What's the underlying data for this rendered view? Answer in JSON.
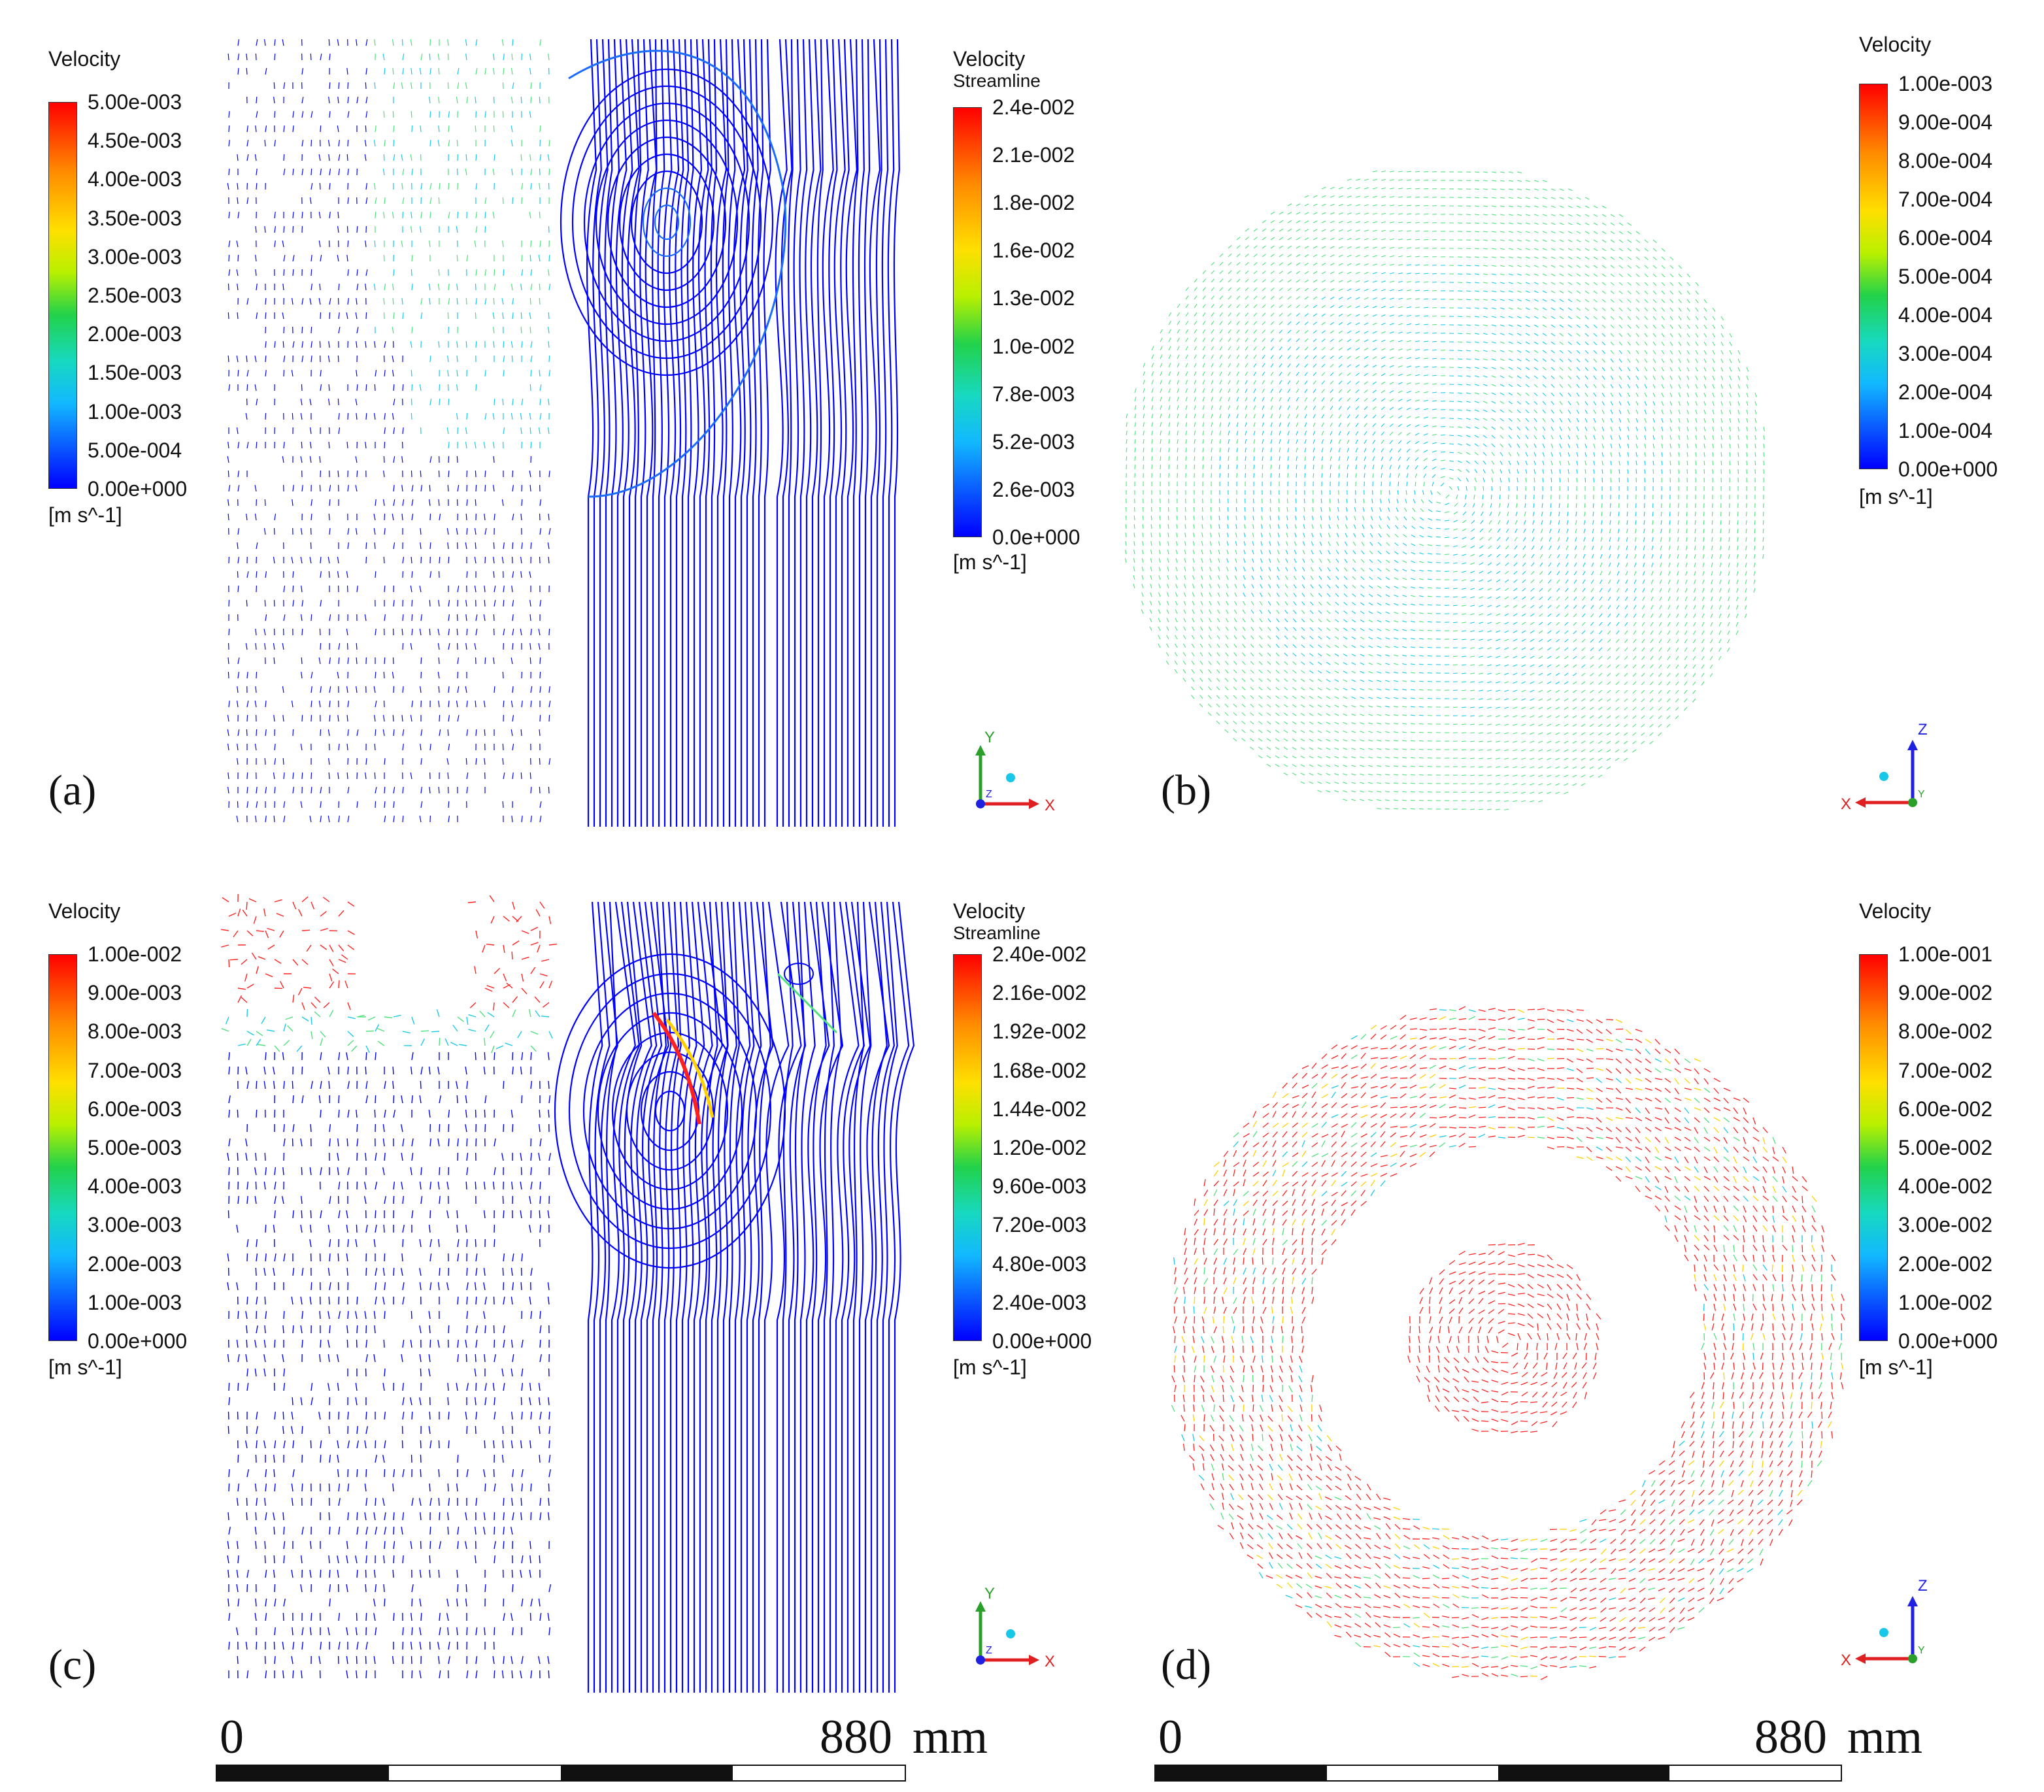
{
  "figure": {
    "panels": [
      {
        "id": "a",
        "label": "(a)",
        "legend_left": {
          "title": "Velocity",
          "ticks": [
            "5.00e-003",
            "4.50e-003",
            "4.00e-003",
            "3.50e-003",
            "3.00e-003",
            "2.50e-003",
            "2.00e-003",
            "1.50e-003",
            "1.00e-003",
            "5.00e-004",
            "0.00e+000"
          ],
          "unit": "[m s^-1]"
        },
        "legend_right": {
          "title": "Velocity",
          "subtitle": "Streamline",
          "ticks": [
            "2.4e-002",
            "2.1e-002",
            "1.8e-002",
            "1.6e-002",
            "1.3e-002",
            "1.0e-002",
            "7.8e-003",
            "5.2e-003",
            "2.6e-003",
            "0.0e+000"
          ],
          "unit": "[m s^-1]"
        },
        "axes": {
          "up": "Y",
          "right": "X",
          "out": "Z"
        }
      },
      {
        "id": "b",
        "label": "(b)",
        "legend_right": {
          "title": "Velocity",
          "ticks": [
            "1.00e-003",
            "9.00e-004",
            "8.00e-004",
            "7.00e-004",
            "6.00e-004",
            "5.00e-004",
            "4.00e-004",
            "3.00e-004",
            "2.00e-004",
            "1.00e-004",
            "0.00e+000"
          ],
          "unit": "[m s^-1]"
        },
        "axes": {
          "up": "Z",
          "left": "X",
          "out": "Y"
        }
      },
      {
        "id": "c",
        "label": "(c)",
        "legend_left": {
          "title": "Velocity",
          "ticks": [
            "1.00e-002",
            "9.00e-003",
            "8.00e-003",
            "7.00e-003",
            "6.00e-003",
            "5.00e-003",
            "4.00e-003",
            "3.00e-003",
            "2.00e-003",
            "1.00e-003",
            "0.00e+000"
          ],
          "unit": "[m s^-1]"
        },
        "legend_right": {
          "title": "Velocity",
          "subtitle": "Streamline",
          "ticks": [
            "2.40e-002",
            "2.16e-002",
            "1.92e-002",
            "1.68e-002",
            "1.44e-002",
            "1.20e-002",
            "9.60e-003",
            "7.20e-003",
            "4.80e-003",
            "2.40e-003",
            "0.00e+000"
          ],
          "unit": "[m s^-1]"
        },
        "axes": {
          "up": "Y",
          "right": "X",
          "out": "Z"
        },
        "scale": {
          "start": "0",
          "end": "880",
          "unit": "mm"
        }
      },
      {
        "id": "d",
        "label": "(d)",
        "legend_right": {
          "title": "Velocity",
          "ticks": [
            "1.00e-001",
            "9.00e-002",
            "8.00e-002",
            "7.00e-002",
            "6.00e-002",
            "5.00e-002",
            "4.00e-002",
            "3.00e-002",
            "2.00e-002",
            "1.00e-002",
            "0.00e+000"
          ],
          "unit": "[m s^-1]"
        },
        "axes": {
          "up": "Z",
          "left": "X",
          "out": "Y"
        },
        "scale": {
          "start": "0",
          "end": "880",
          "unit": "mm"
        }
      }
    ],
    "colors": {
      "cold": "#0000ff",
      "cyan": "#19c8e8",
      "green": "#4ee07a",
      "warm": "#ff2020",
      "axis_y": "#2aa02a",
      "axis_x": "#e02020",
      "axis_z": "#2020e0"
    }
  }
}
